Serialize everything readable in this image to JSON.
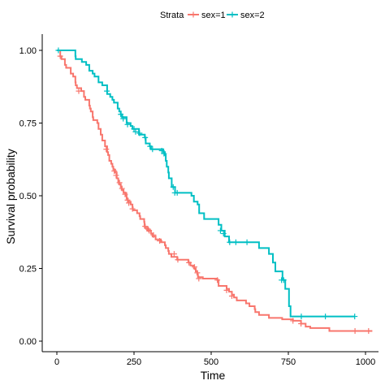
{
  "chart_data": {
    "type": "line",
    "subtype": "kaplan-meier step curves",
    "title": "",
    "xlabel": "Time",
    "ylabel": "Survival probability",
    "xlim": [
      0,
      1022
    ],
    "ylim": [
      0,
      1
    ],
    "xticks": [
      0,
      250,
      500,
      750,
      1000
    ],
    "xtick_labels": [
      "0",
      "250",
      "500",
      "750",
      "1000"
    ],
    "yticks": [
      0,
      0.25,
      0.5,
      0.75,
      1
    ],
    "ytick_labels": [
      "0.00",
      "0.25",
      "0.50",
      "0.75",
      "1.00"
    ],
    "grid": false,
    "legend": {
      "title": "Strata",
      "position": "top"
    },
    "series": [
      {
        "name": "sex=1",
        "color": "#F8766D",
        "steps": [
          [
            0,
            1.0
          ],
          [
            11,
            0.98
          ],
          [
            15,
            0.97
          ],
          [
            26,
            0.95
          ],
          [
            30,
            0.94
          ],
          [
            45,
            0.92
          ],
          [
            53,
            0.91
          ],
          [
            60,
            0.89
          ],
          [
            61,
            0.88
          ],
          [
            65,
            0.87
          ],
          [
            79,
            0.86
          ],
          [
            88,
            0.84
          ],
          [
            92,
            0.83
          ],
          [
            105,
            0.81
          ],
          [
            107,
            0.8
          ],
          [
            110,
            0.79
          ],
          [
            116,
            0.77
          ],
          [
            118,
            0.76
          ],
          [
            131,
            0.75
          ],
          [
            135,
            0.73
          ],
          [
            142,
            0.71
          ],
          [
            147,
            0.69
          ],
          [
            156,
            0.67
          ],
          [
            163,
            0.65
          ],
          [
            166,
            0.64
          ],
          [
            170,
            0.62
          ],
          [
            176,
            0.61
          ],
          [
            180,
            0.6
          ],
          [
            183,
            0.59
          ],
          [
            189,
            0.58
          ],
          [
            194,
            0.56
          ],
          [
            199,
            0.55
          ],
          [
            201,
            0.54
          ],
          [
            207,
            0.53
          ],
          [
            210,
            0.52
          ],
          [
            216,
            0.51
          ],
          [
            225,
            0.5
          ],
          [
            226,
            0.49
          ],
          [
            230,
            0.48
          ],
          [
            239,
            0.47
          ],
          [
            245,
            0.46
          ],
          [
            246,
            0.45
          ],
          [
            260,
            0.44
          ],
          [
            268,
            0.43
          ],
          [
            270,
            0.42
          ],
          [
            283,
            0.41
          ],
          [
            284,
            0.4
          ],
          [
            285,
            0.39
          ],
          [
            293,
            0.38
          ],
          [
            305,
            0.37
          ],
          [
            310,
            0.36
          ],
          [
            320,
            0.35
          ],
          [
            337,
            0.34
          ],
          [
            350,
            0.33
          ],
          [
            353,
            0.32
          ],
          [
            361,
            0.31
          ],
          [
            363,
            0.3
          ],
          [
            371,
            0.29
          ],
          [
            390,
            0.28
          ],
          [
            426,
            0.27
          ],
          [
            433,
            0.26
          ],
          [
            444,
            0.25
          ],
          [
            450,
            0.24
          ],
          [
            455,
            0.23
          ],
          [
            457,
            0.22
          ],
          [
            473,
            0.215
          ],
          [
            520,
            0.21
          ],
          [
            524,
            0.19
          ],
          [
            550,
            0.18
          ],
          [
            558,
            0.17
          ],
          [
            567,
            0.16
          ],
          [
            574,
            0.15
          ],
          [
            583,
            0.14
          ],
          [
            613,
            0.13
          ],
          [
            624,
            0.12
          ],
          [
            641,
            0.11
          ],
          [
            643,
            0.1
          ],
          [
            655,
            0.09
          ],
          [
            687,
            0.08
          ],
          [
            730,
            0.075
          ],
          [
            765,
            0.07
          ],
          [
            791,
            0.06
          ],
          [
            806,
            0.05
          ],
          [
            821,
            0.045
          ],
          [
            883,
            0.035
          ],
          [
            1022,
            0.035
          ]
        ],
        "censored": [
          [
            11,
            0.98
          ],
          [
            71,
            0.86
          ],
          [
            160,
            0.66
          ],
          [
            186,
            0.585
          ],
          [
            192,
            0.57
          ],
          [
            203,
            0.545
          ],
          [
            211,
            0.525
          ],
          [
            221,
            0.505
          ],
          [
            229,
            0.485
          ],
          [
            233,
            0.475
          ],
          [
            245,
            0.455
          ],
          [
            286,
            0.395
          ],
          [
            296,
            0.385
          ],
          [
            299,
            0.38
          ],
          [
            313,
            0.365
          ],
          [
            333,
            0.345
          ],
          [
            380,
            0.3
          ],
          [
            392,
            0.28
          ],
          [
            428,
            0.27
          ],
          [
            446,
            0.255
          ],
          [
            455,
            0.235
          ],
          [
            460,
            0.215
          ],
          [
            520,
            0.21
          ],
          [
            550,
            0.175
          ],
          [
            567,
            0.155
          ],
          [
            765,
            0.07
          ],
          [
            791,
            0.06
          ],
          [
            966,
            0.035
          ],
          [
            1010,
            0.035
          ]
        ]
      },
      {
        "name": "sex=2",
        "color": "#00BFC4",
        "steps": [
          [
            0,
            1.0
          ],
          [
            60,
            0.98
          ],
          [
            61,
            0.97
          ],
          [
            81,
            0.96
          ],
          [
            95,
            0.95
          ],
          [
            105,
            0.93
          ],
          [
            116,
            0.92
          ],
          [
            122,
            0.91
          ],
          [
            135,
            0.89
          ],
          [
            147,
            0.88
          ],
          [
            163,
            0.85
          ],
          [
            173,
            0.84
          ],
          [
            180,
            0.83
          ],
          [
            185,
            0.82
          ],
          [
            197,
            0.8
          ],
          [
            202,
            0.79
          ],
          [
            207,
            0.78
          ],
          [
            211,
            0.77
          ],
          [
            226,
            0.75
          ],
          [
            239,
            0.74
          ],
          [
            245,
            0.73
          ],
          [
            266,
            0.71
          ],
          [
            285,
            0.7
          ],
          [
            288,
            0.68
          ],
          [
            301,
            0.67
          ],
          [
            305,
            0.66
          ],
          [
            345,
            0.65
          ],
          [
            350,
            0.64
          ],
          [
            353,
            0.62
          ],
          [
            356,
            0.6
          ],
          [
            361,
            0.58
          ],
          [
            363,
            0.56
          ],
          [
            372,
            0.53
          ],
          [
            383,
            0.51
          ],
          [
            436,
            0.5
          ],
          [
            444,
            0.48
          ],
          [
            456,
            0.47
          ],
          [
            461,
            0.44
          ],
          [
            477,
            0.42
          ],
          [
            524,
            0.4
          ],
          [
            533,
            0.38
          ],
          [
            544,
            0.36
          ],
          [
            558,
            0.34
          ],
          [
            627,
            0.34
          ],
          [
            655,
            0.32
          ],
          [
            687,
            0.3
          ],
          [
            700,
            0.27
          ],
          [
            708,
            0.24
          ],
          [
            731,
            0.21
          ],
          [
            740,
            0.18
          ],
          [
            752,
            0.12
          ],
          [
            757,
            0.085
          ],
          [
            965,
            0.085
          ]
        ],
        "censored": [
          [
            5,
            1.0
          ],
          [
            162,
            0.86
          ],
          [
            207,
            0.78
          ],
          [
            215,
            0.765
          ],
          [
            229,
            0.745
          ],
          [
            250,
            0.73
          ],
          [
            255,
            0.72
          ],
          [
            268,
            0.715
          ],
          [
            286,
            0.7
          ],
          [
            302,
            0.67
          ],
          [
            310,
            0.66
          ],
          [
            340,
            0.655
          ],
          [
            347,
            0.645
          ],
          [
            377,
            0.53
          ],
          [
            382,
            0.51
          ],
          [
            390,
            0.51
          ],
          [
            530,
            0.38
          ],
          [
            540,
            0.37
          ],
          [
            560,
            0.34
          ],
          [
            580,
            0.34
          ],
          [
            616,
            0.34
          ],
          [
            728,
            0.21
          ],
          [
            735,
            0.21
          ],
          [
            792,
            0.085
          ],
          [
            870,
            0.085
          ],
          [
            965,
            0.085
          ]
        ]
      }
    ]
  }
}
